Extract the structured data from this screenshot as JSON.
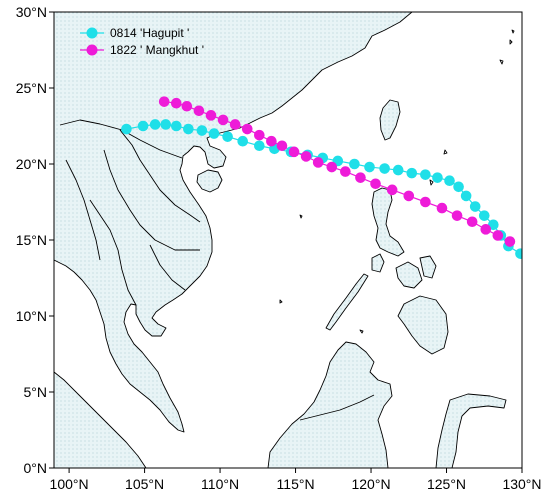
{
  "colors": {
    "land_fill": "#e8f4f6",
    "land_dots": "#9fc3cc",
    "ocean": "#ffffff",
    "frame": "#000000",
    "hagupit": "#1fdfe8",
    "mangkhut": "#ee1bd8"
  },
  "chart_data": {
    "type": "scatter",
    "title": "",
    "xlim": [
      99,
      130
    ],
    "ylim": [
      0,
      30
    ],
    "x_ticks": [
      {
        "value": 100,
        "label": "100°N"
      },
      {
        "value": 105,
        "label": "105°N"
      },
      {
        "value": 110,
        "label": "110°N"
      },
      {
        "value": 115,
        "label": "115°N"
      },
      {
        "value": 120,
        "label": "120°N"
      },
      {
        "value": 125,
        "label": "125°N"
      },
      {
        "value": 130,
        "label": "130°N"
      }
    ],
    "y_ticks": [
      {
        "value": 0,
        "label": "0°N"
      },
      {
        "value": 5,
        "label": "5°N"
      },
      {
        "value": 10,
        "label": "10°N"
      },
      {
        "value": 15,
        "label": "15°N"
      },
      {
        "value": 20,
        "label": "20°N"
      },
      {
        "value": 25,
        "label": "25°N"
      },
      {
        "value": 30,
        "label": "30°N"
      }
    ],
    "legend": {
      "placement": "top-left",
      "entries": [
        {
          "label": "0814 'Hagupit '",
          "color": "#1fdfe8"
        },
        {
          "label": "1822 ' Mangkhut '",
          "color": "#ee1bd8"
        }
      ]
    },
    "series": [
      {
        "name": "0814 'Hagupit '",
        "color": "#1fdfe8",
        "x": [
          129.9,
          129.1,
          128.6,
          128.1,
          127.5,
          126.9,
          126.3,
          125.8,
          125.2,
          124.4,
          123.6,
          122.7,
          121.8,
          120.9,
          119.9,
          118.9,
          117.8,
          116.8,
          115.8,
          114.7,
          113.6,
          112.6,
          111.5,
          110.5,
          109.6,
          108.8,
          107.9,
          107.1,
          106.4,
          105.7,
          104.9,
          103.8
        ],
        "y": [
          14.1,
          14.6,
          15.3,
          16.0,
          16.6,
          17.2,
          17.9,
          18.5,
          18.9,
          19.1,
          19.3,
          19.4,
          19.6,
          19.7,
          19.8,
          20.0,
          20.2,
          20.4,
          20.6,
          20.8,
          21.0,
          21.2,
          21.5,
          21.8,
          22.0,
          22.2,
          22.3,
          22.5,
          22.6,
          22.6,
          22.5,
          22.3
        ]
      },
      {
        "name": "1822 ' Mangkhut '",
        "color": "#ee1bd8",
        "x": [
          129.2,
          128.4,
          127.6,
          126.7,
          125.7,
          124.7,
          123.6,
          122.5,
          121.4,
          120.3,
          119.3,
          118.3,
          117.4,
          116.5,
          115.7,
          114.9,
          114.1,
          113.4,
          112.6,
          111.8,
          111.0,
          110.2,
          109.4,
          108.6,
          107.8,
          107.1,
          106.3
        ],
        "y": [
          14.9,
          15.3,
          15.7,
          16.2,
          16.6,
          17.1,
          17.5,
          17.9,
          18.3,
          18.7,
          19.1,
          19.5,
          19.8,
          20.1,
          20.5,
          20.8,
          21.2,
          21.5,
          21.9,
          22.3,
          22.6,
          22.9,
          23.2,
          23.5,
          23.8,
          24.0,
          24.1
        ]
      }
    ]
  }
}
